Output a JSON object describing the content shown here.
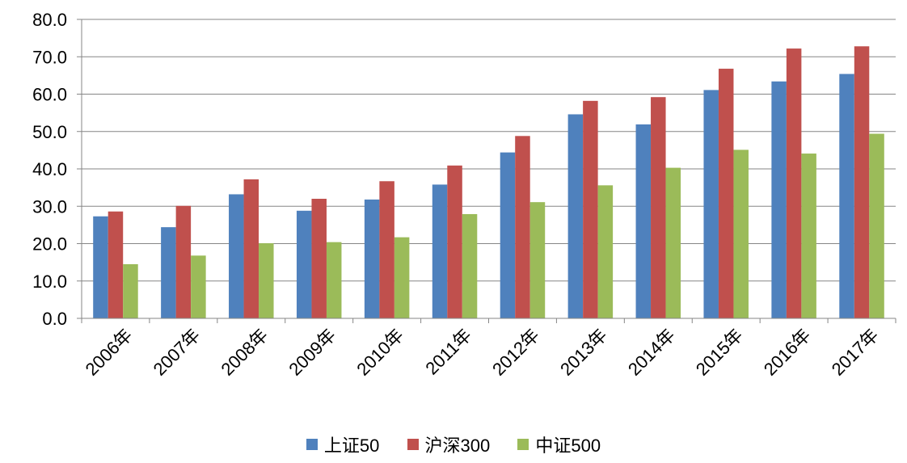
{
  "chart_data": {
    "type": "bar",
    "categories": [
      "2006年",
      "2007年",
      "2008年",
      "2009年",
      "2010年",
      "2011年",
      "2012年",
      "2013年",
      "2014年",
      "2015年",
      "2016年",
      "2017年"
    ],
    "series": [
      {
        "name": "上证50",
        "color": "#4F81BD",
        "values": [
          27.3,
          24.4,
          33.2,
          28.8,
          31.8,
          35.8,
          44.4,
          54.6,
          51.9,
          61.1,
          63.4,
          65.4
        ]
      },
      {
        "name": "沪深300",
        "color": "#C0504D",
        "values": [
          28.6,
          30.1,
          37.2,
          32.0,
          36.7,
          40.9,
          48.8,
          58.2,
          59.2,
          66.8,
          72.2,
          72.8
        ]
      },
      {
        "name": "中证500",
        "color": "#9BBB59",
        "values": [
          14.5,
          16.8,
          20.1,
          20.4,
          21.7,
          27.9,
          31.1,
          35.6,
          40.3,
          45.1,
          44.1,
          49.4
        ]
      }
    ],
    "yticks": [
      "0.0",
      "10.0",
      "20.0",
      "30.0",
      "40.0",
      "50.0",
      "60.0",
      "70.0",
      "80.0"
    ],
    "ylim": [
      0,
      80
    ],
    "grid": true,
    "legend_position": "bottom"
  }
}
